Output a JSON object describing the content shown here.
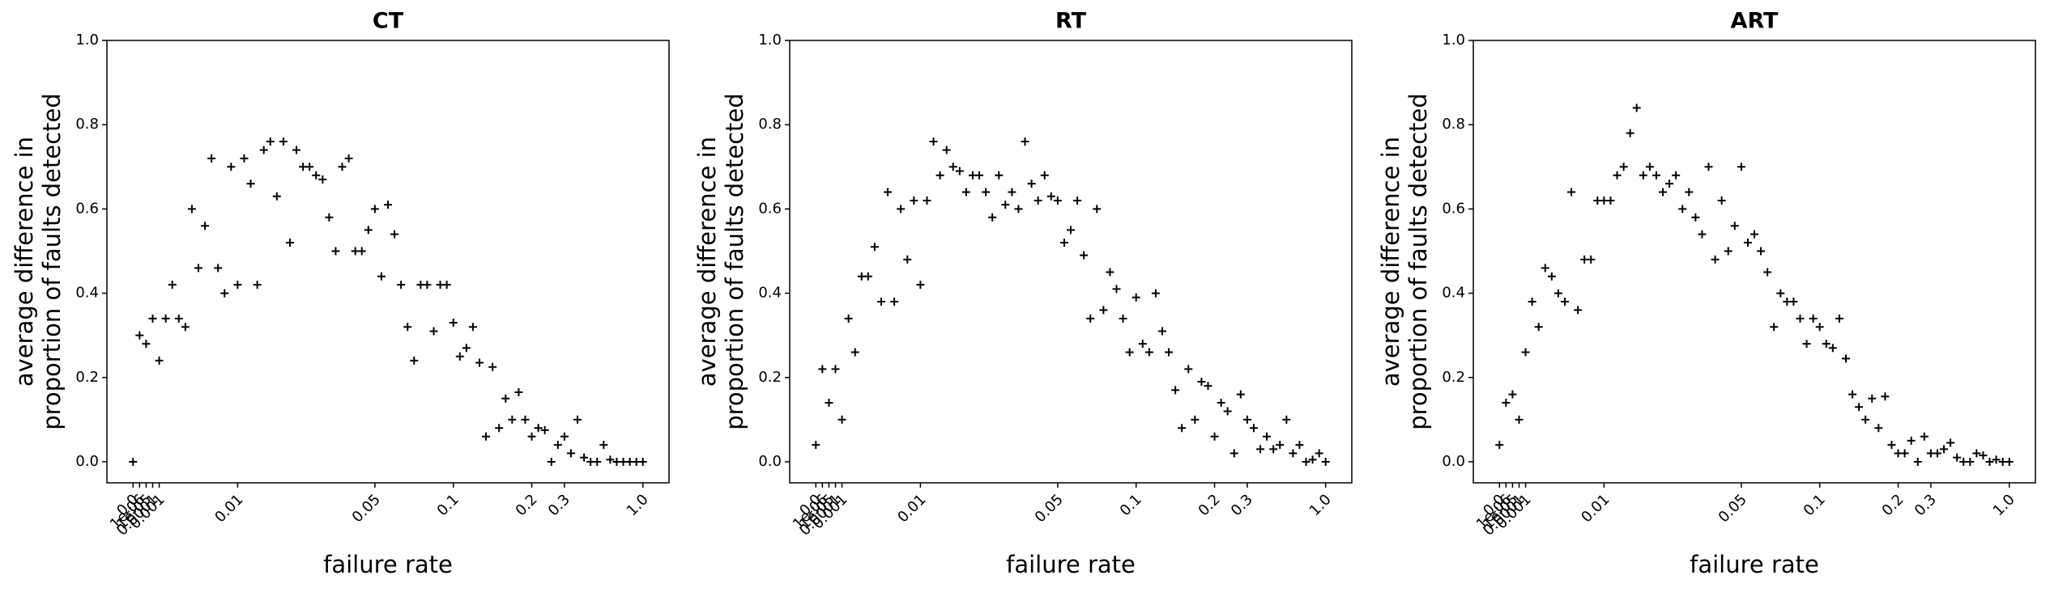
{
  "chart_data": [
    {
      "type": "scatter",
      "title": "CT",
      "x_label": "failure rate",
      "y_label": [
        "average difference in",
        "proportion of faults detected"
      ],
      "color": "#000000",
      "marker": "+",
      "categories": [
        "0.0",
        "1e-06",
        "1e-05",
        "0.0001",
        "0.001",
        null,
        null,
        null,
        null,
        null,
        null,
        null,
        null,
        null,
        null,
        null,
        "0.01",
        null,
        null,
        null,
        null,
        null,
        null,
        null,
        null,
        null,
        null,
        null,
        null,
        null,
        null,
        null,
        null,
        null,
        null,
        null,
        null,
        "0.05",
        null,
        null,
        null,
        null,
        null,
        null,
        null,
        null,
        null,
        null,
        null,
        "0.1",
        null,
        null,
        null,
        null,
        null,
        null,
        null,
        null,
        null,
        null,
        null,
        "0.2",
        null,
        null,
        null,
        null,
        "0.3",
        null,
        null,
        null,
        null,
        null,
        null,
        null,
        null,
        null,
        null,
        null,
        "1.0"
      ],
      "values": [
        0,
        0.3,
        0.28,
        0.34,
        0.24,
        0.34,
        0.42,
        0.34,
        0.32,
        0.6,
        0.46,
        0.56,
        0.72,
        0.46,
        0.4,
        0.7,
        0.42,
        0.72,
        0.66,
        0.42,
        0.74,
        0.76,
        0.63,
        0.76,
        0.52,
        0.74,
        0.7,
        0.7,
        0.68,
        0.67,
        0.58,
        0.5,
        0.7,
        0.72,
        0.5,
        0.5,
        0.55,
        0.6,
        0.44,
        0.61,
        0.54,
        0.42,
        0.32,
        0.24,
        0.42,
        0.42,
        0.31,
        0.42,
        0.42,
        0.33,
        0.25,
        0.27,
        0.32,
        0.235,
        0.06,
        0.225,
        0.08,
        0.15,
        0.1,
        0.165,
        0.1,
        0.06,
        0.08,
        0.075,
        0,
        0.04,
        0.06,
        0.02,
        0.1,
        0.01,
        0,
        0,
        0.04,
        0.005,
        0,
        0,
        0,
        0,
        0
      ],
      "ylim": [
        -0.05,
        1.0
      ],
      "yticks": [
        {
          "value": 0,
          "label": "0.0"
        },
        0.2,
        0.4,
        0.6,
        0.8,
        {
          "value": 1,
          "label": "1.0"
        }
      ]
    },
    {
      "type": "scatter",
      "title": "RT",
      "x_label": "failure rate",
      "y_label": [
        "average difference in",
        "proportion of faults detected"
      ],
      "color": "#000000",
      "marker": "+",
      "categories": [
        "0.0",
        "1e-06",
        "1e-05",
        "0.0001",
        "0.001",
        null,
        null,
        null,
        null,
        null,
        null,
        null,
        null,
        null,
        null,
        null,
        "0.01",
        null,
        null,
        null,
        null,
        null,
        null,
        null,
        null,
        null,
        null,
        null,
        null,
        null,
        null,
        null,
        null,
        null,
        null,
        null,
        null,
        "0.05",
        null,
        null,
        null,
        null,
        null,
        null,
        null,
        null,
        null,
        null,
        null,
        "0.1",
        null,
        null,
        null,
        null,
        null,
        null,
        null,
        null,
        null,
        null,
        null,
        "0.2",
        null,
        null,
        null,
        null,
        "0.3",
        null,
        null,
        null,
        null,
        null,
        null,
        null,
        null,
        null,
        null,
        null,
        "1.0"
      ],
      "values": [
        0.04,
        0.22,
        0.14,
        0.22,
        0.1,
        0.34,
        0.26,
        0.44,
        0.44,
        0.51,
        0.38,
        0.64,
        0.38,
        0.6,
        0.48,
        0.62,
        0.42,
        0.62,
        0.76,
        0.68,
        0.74,
        0.7,
        0.69,
        0.64,
        0.68,
        0.68,
        0.64,
        0.58,
        0.68,
        0.61,
        0.64,
        0.6,
        0.76,
        0.66,
        0.62,
        0.68,
        0.63,
        0.62,
        0.52,
        0.55,
        0.62,
        0.49,
        0.34,
        0.6,
        0.36,
        0.45,
        0.41,
        0.34,
        0.26,
        0.39,
        0.28,
        0.26,
        0.4,
        0.31,
        0.26,
        0.17,
        0.08,
        0.22,
        0.1,
        0.19,
        0.18,
        0.06,
        0.14,
        0.12,
        0.02,
        0.16,
        0.1,
        0.08,
        0.03,
        0.06,
        0.03,
        0.04,
        0.1,
        0.02,
        0.04,
        0,
        0.005,
        0.02,
        0
      ],
      "ylim": [
        -0.05,
        1.0
      ],
      "yticks": [
        {
          "value": 0,
          "label": "0.0"
        },
        0.2,
        0.4,
        0.6,
        0.8,
        {
          "value": 1,
          "label": "1.0"
        }
      ]
    },
    {
      "type": "scatter",
      "title": "ART",
      "x_label": "failure rate",
      "y_label": [
        "average difference in",
        "proportion of faults detected"
      ],
      "color": "#000000",
      "marker": "+",
      "categories": [
        "0.0",
        "1e-06",
        "1e-05",
        "0.0001",
        "0.001",
        null,
        null,
        null,
        null,
        null,
        null,
        null,
        null,
        null,
        null,
        null,
        "0.01",
        null,
        null,
        null,
        null,
        null,
        null,
        null,
        null,
        null,
        null,
        null,
        null,
        null,
        null,
        null,
        null,
        null,
        null,
        null,
        null,
        "0.05",
        null,
        null,
        null,
        null,
        null,
        null,
        null,
        null,
        null,
        null,
        null,
        "0.1",
        null,
        null,
        null,
        null,
        null,
        null,
        null,
        null,
        null,
        null,
        null,
        "0.2",
        null,
        null,
        null,
        null,
        "0.3",
        null,
        null,
        null,
        null,
        null,
        null,
        null,
        null,
        null,
        null,
        null,
        "1.0"
      ],
      "values": [
        0.04,
        0.14,
        0.16,
        0.1,
        0.26,
        0.38,
        0.32,
        0.46,
        0.44,
        0.4,
        0.38,
        0.64,
        0.36,
        0.48,
        0.48,
        0.62,
        0.62,
        0.62,
        0.68,
        0.7,
        0.78,
        0.84,
        0.68,
        0.7,
        0.68,
        0.64,
        0.66,
        0.68,
        0.6,
        0.64,
        0.58,
        0.54,
        0.7,
        0.48,
        0.62,
        0.5,
        0.56,
        0.7,
        0.52,
        0.54,
        0.5,
        0.45,
        0.32,
        0.4,
        0.38,
        0.38,
        0.34,
        0.28,
        0.34,
        0.32,
        0.28,
        0.27,
        0.34,
        0.245,
        0.16,
        0.13,
        0.1,
        0.15,
        0.08,
        0.155,
        0.04,
        0.02,
        0.02,
        0.05,
        0,
        0.06,
        0.02,
        0.02,
        0.03,
        0.045,
        0.01,
        0,
        0,
        0.02,
        0.015,
        0,
        0.005,
        0,
        0
      ],
      "ylim": [
        -0.05,
        1.0
      ],
      "yticks": [
        {
          "value": 0,
          "label": "0.0"
        },
        0.2,
        0.4,
        0.6,
        0.8,
        {
          "value": 1,
          "label": "1.0"
        }
      ]
    }
  ]
}
